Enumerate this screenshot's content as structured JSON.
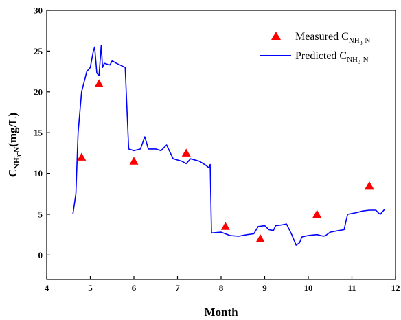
{
  "chart_data": {
    "type": "line",
    "xlabel": "Month",
    "ylabel": {
      "main": "C",
      "sub1": "NH",
      "sub2": "3",
      "sub3": "-N",
      "unit": "(mg/L)"
    },
    "xlim": [
      4,
      12
    ],
    "ylim": [
      -3,
      30
    ],
    "xticks": [
      "4",
      "5",
      "6",
      "7",
      "8",
      "9",
      "10",
      "11",
      "12"
    ],
    "yticks": [
      "0",
      "5",
      "10",
      "15",
      "20",
      "25",
      "30"
    ],
    "colors": {
      "measured": "#ff0000",
      "predicted": "#0000ff"
    },
    "legend_position": "top-right",
    "series": [
      {
        "name": {
          "prefix": "Measured C",
          "sub": "NH",
          "sub2": "3",
          "sub3": "-N"
        },
        "kind": "scatter",
        "marker": "triangle",
        "points": [
          [
            4.8,
            12.0
          ],
          [
            5.2,
            21.0
          ],
          [
            6.0,
            11.5
          ],
          [
            7.2,
            12.5
          ],
          [
            8.1,
            3.5
          ],
          [
            8.9,
            2.0
          ],
          [
            10.2,
            5.0
          ],
          [
            11.4,
            8.5
          ]
        ]
      },
      {
        "name": {
          "prefix": "Predicted C",
          "sub": "NH",
          "sub2": "3",
          "sub3": "-N"
        },
        "kind": "line",
        "points": [
          [
            4.6,
            5.0
          ],
          [
            4.67,
            7.5
          ],
          [
            4.72,
            15.0
          ],
          [
            4.8,
            20.0
          ],
          [
            4.92,
            22.5
          ],
          [
            5.0,
            23.0
          ],
          [
            5.07,
            25.0
          ],
          [
            5.1,
            25.5
          ],
          [
            5.15,
            22.3
          ],
          [
            5.2,
            22.0
          ],
          [
            5.25,
            25.7
          ],
          [
            5.28,
            23.0
          ],
          [
            5.32,
            23.5
          ],
          [
            5.45,
            23.3
          ],
          [
            5.5,
            23.8
          ],
          [
            5.6,
            23.5
          ],
          [
            5.8,
            23.0
          ],
          [
            5.88,
            13.0
          ],
          [
            6.0,
            12.8
          ],
          [
            6.15,
            13.0
          ],
          [
            6.25,
            14.5
          ],
          [
            6.33,
            13.0
          ],
          [
            6.5,
            13.0
          ],
          [
            6.62,
            12.8
          ],
          [
            6.75,
            13.5
          ],
          [
            6.9,
            11.8
          ],
          [
            7.1,
            11.5
          ],
          [
            7.2,
            11.2
          ],
          [
            7.3,
            11.8
          ],
          [
            7.5,
            11.5
          ],
          [
            7.65,
            11.0
          ],
          [
            7.72,
            10.7
          ],
          [
            7.75,
            11.1
          ],
          [
            7.78,
            2.7
          ],
          [
            8.0,
            2.8
          ],
          [
            8.2,
            2.4
          ],
          [
            8.4,
            2.3
          ],
          [
            8.6,
            2.5
          ],
          [
            8.75,
            2.6
          ],
          [
            8.85,
            3.5
          ],
          [
            9.0,
            3.6
          ],
          [
            9.1,
            3.1
          ],
          [
            9.2,
            3.0
          ],
          [
            9.25,
            3.6
          ],
          [
            9.4,
            3.7
          ],
          [
            9.5,
            3.8
          ],
          [
            9.62,
            2.5
          ],
          [
            9.72,
            1.2
          ],
          [
            9.8,
            1.5
          ],
          [
            9.85,
            2.2
          ],
          [
            10.0,
            2.4
          ],
          [
            10.2,
            2.5
          ],
          [
            10.35,
            2.3
          ],
          [
            10.4,
            2.4
          ],
          [
            10.5,
            2.8
          ],
          [
            10.7,
            3.0
          ],
          [
            10.82,
            3.1
          ],
          [
            10.9,
            5.0
          ],
          [
            11.1,
            5.2
          ],
          [
            11.25,
            5.4
          ],
          [
            11.4,
            5.5
          ],
          [
            11.55,
            5.5
          ],
          [
            11.62,
            5.1
          ],
          [
            11.65,
            5.0
          ],
          [
            11.75,
            5.6
          ]
        ]
      }
    ]
  }
}
